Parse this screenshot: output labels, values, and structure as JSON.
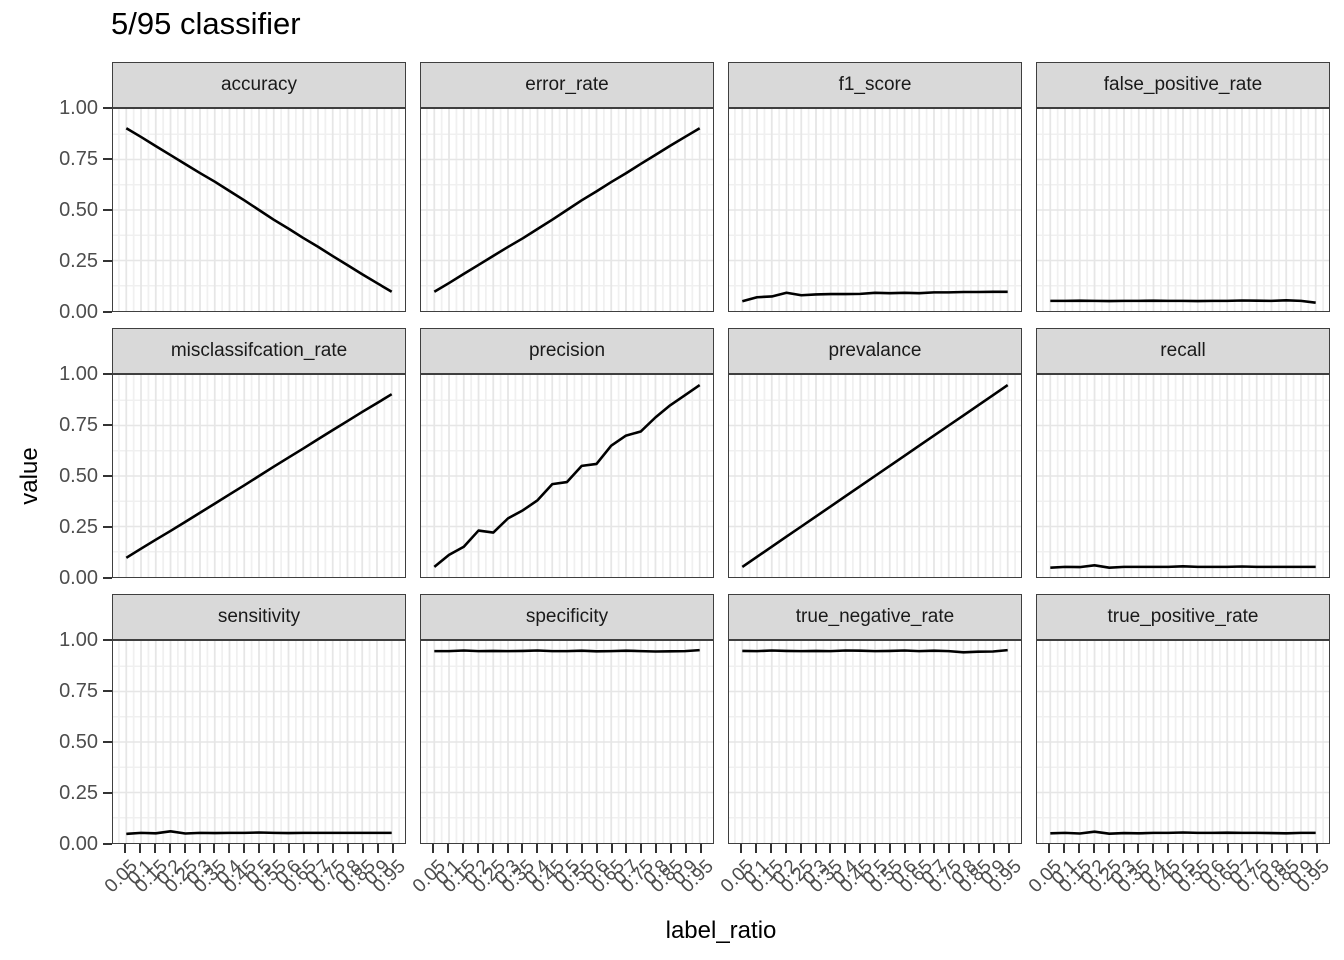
{
  "title": "5/95 classifier",
  "axes": {
    "x_title": "label_ratio",
    "y_title": "value",
    "y_tick_labels": [
      "1.00",
      "0.75",
      "0.50",
      "0.25",
      "0.00"
    ],
    "x_tick_labels": [
      "0.05",
      "0.1",
      "0.15",
      "0.2",
      "0.25",
      "0.3",
      "0.35",
      "0.4",
      "0.45",
      "0.5",
      "0.55",
      "0.6",
      "0.65",
      "0.7",
      "0.75",
      "0.8",
      "0.85",
      "0.9",
      "0.95"
    ]
  },
  "colors": {
    "strip_fill": "#d9d9d9",
    "strip_border": "#3f3f3f",
    "panel_border": "#3f3f3f",
    "panel_bg": "#ffffff",
    "grid_major": "#e6e6e6",
    "grid_minor": "#f0f0f0",
    "line": "#000000",
    "axis_text": "#4d4d4d",
    "tick_mark": "#333333",
    "title_text": "#000000"
  },
  "chart_data": {
    "type": "line",
    "title": "5/95 classifier",
    "xlabel": "label_ratio",
    "ylabel": "value",
    "legend": "none",
    "grid": true,
    "ylim": [
      0,
      1
    ],
    "y_major_breaks": [
      0,
      0.25,
      0.5,
      0.75,
      1
    ],
    "y_minor_breaks": [
      0.125,
      0.375,
      0.625,
      0.875
    ],
    "x": [
      0.05,
      0.1,
      0.15,
      0.2,
      0.25,
      0.3,
      0.35,
      0.4,
      0.45,
      0.5,
      0.55,
      0.6,
      0.65,
      0.7,
      0.75,
      0.8,
      0.85,
      0.9,
      0.95
    ],
    "facets": [
      {
        "name": "accuracy",
        "values": [
          0.905,
          0.862,
          0.816,
          0.772,
          0.727,
          0.683,
          0.64,
          0.594,
          0.548,
          0.5,
          0.452,
          0.408,
          0.362,
          0.318,
          0.272,
          0.227,
          0.182,
          0.138,
          0.095
        ]
      },
      {
        "name": "error_rate",
        "values": [
          0.095,
          0.138,
          0.184,
          0.228,
          0.273,
          0.317,
          0.36,
          0.406,
          0.452,
          0.5,
          0.548,
          0.592,
          0.638,
          0.682,
          0.728,
          0.773,
          0.818,
          0.862,
          0.905
        ]
      },
      {
        "name": "f1_score",
        "values": [
          0.048,
          0.068,
          0.072,
          0.09,
          0.078,
          0.082,
          0.084,
          0.084,
          0.085,
          0.09,
          0.088,
          0.09,
          0.088,
          0.092,
          0.092,
          0.094,
          0.094,
          0.095,
          0.095
        ]
      },
      {
        "name": "false_positive_rate",
        "values": [
          0.05,
          0.05,
          0.051,
          0.05,
          0.049,
          0.05,
          0.05,
          0.051,
          0.05,
          0.05,
          0.049,
          0.05,
          0.05,
          0.052,
          0.051,
          0.05,
          0.053,
          0.05,
          0.041
        ]
      },
      {
        "name": "misclassifcation_rate",
        "values": [
          0.095,
          0.14,
          0.185,
          0.228,
          0.273,
          0.318,
          0.363,
          0.409,
          0.454,
          0.5,
          0.546,
          0.591,
          0.636,
          0.682,
          0.727,
          0.772,
          0.817,
          0.861,
          0.905
        ]
      },
      {
        "name": "precision",
        "values": [
          0.05,
          0.11,
          0.15,
          0.23,
          0.22,
          0.29,
          0.33,
          0.38,
          0.46,
          0.47,
          0.55,
          0.56,
          0.65,
          0.7,
          0.72,
          0.79,
          0.85,
          0.9,
          0.95
        ]
      },
      {
        "name": "prevalance",
        "values": [
          0.05,
          0.1,
          0.15,
          0.2,
          0.25,
          0.3,
          0.35,
          0.4,
          0.45,
          0.5,
          0.55,
          0.6,
          0.65,
          0.7,
          0.75,
          0.8,
          0.85,
          0.9,
          0.95
        ]
      },
      {
        "name": "recall",
        "values": [
          0.046,
          0.05,
          0.049,
          0.058,
          0.046,
          0.05,
          0.05,
          0.05,
          0.05,
          0.053,
          0.05,
          0.05,
          0.05,
          0.052,
          0.05,
          0.05,
          0.05,
          0.05,
          0.05
        ]
      },
      {
        "name": "sensitivity",
        "values": [
          0.045,
          0.05,
          0.048,
          0.058,
          0.047,
          0.05,
          0.049,
          0.05,
          0.05,
          0.052,
          0.05,
          0.049,
          0.05,
          0.05,
          0.05,
          0.05,
          0.05,
          0.05,
          0.05
        ]
      },
      {
        "name": "specificity",
        "values": [
          0.95,
          0.95,
          0.953,
          0.95,
          0.951,
          0.95,
          0.951,
          0.953,
          0.95,
          0.95,
          0.952,
          0.949,
          0.95,
          0.952,
          0.95,
          0.948,
          0.949,
          0.95,
          0.955
        ]
      },
      {
        "name": "true_negative_rate",
        "values": [
          0.951,
          0.95,
          0.953,
          0.951,
          0.95,
          0.951,
          0.95,
          0.953,
          0.952,
          0.95,
          0.951,
          0.953,
          0.95,
          0.952,
          0.95,
          0.944,
          0.947,
          0.948,
          0.955
        ]
      },
      {
        "name": "true_positive_rate",
        "values": [
          0.048,
          0.05,
          0.047,
          0.056,
          0.046,
          0.049,
          0.048,
          0.05,
          0.05,
          0.052,
          0.05,
          0.05,
          0.051,
          0.05,
          0.05,
          0.049,
          0.048,
          0.05,
          0.05
        ]
      }
    ]
  }
}
